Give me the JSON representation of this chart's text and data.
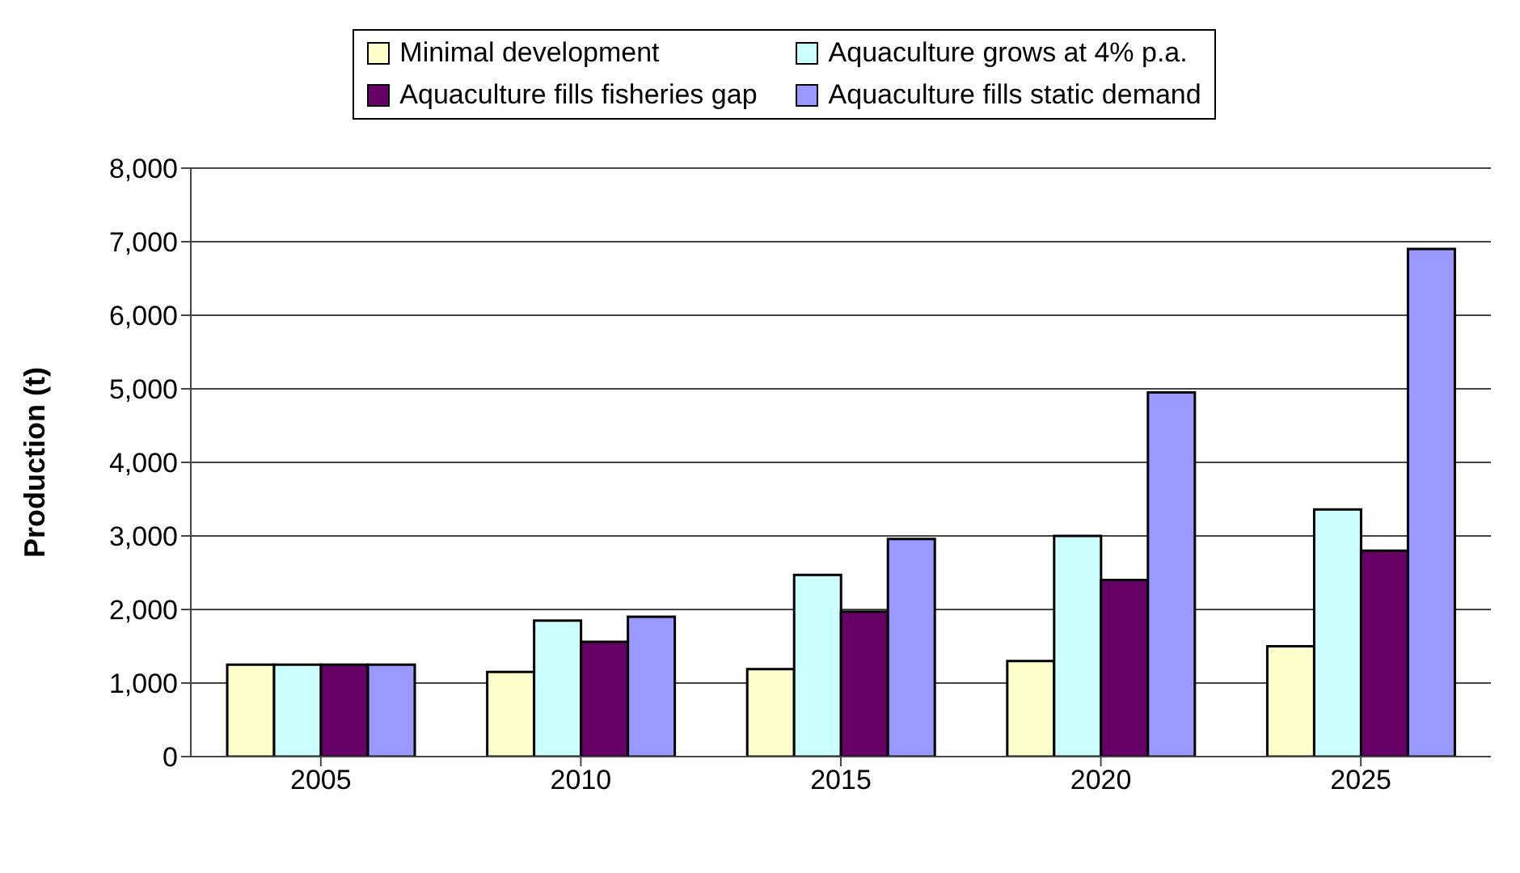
{
  "chart_data": {
    "type": "bar",
    "ylabel": "Production (t)",
    "categories": [
      "2005",
      "2010",
      "2015",
      "2020",
      "2025"
    ],
    "series": [
      {
        "name": "Minimal development",
        "color": "#ffffcc",
        "values": [
          1250,
          1150,
          1190,
          1300,
          1500
        ]
      },
      {
        "name": "Aquaculture grows at 4% p.a.",
        "color": "#ccffff",
        "values": [
          1250,
          1850,
          2470,
          3000,
          3360
        ]
      },
      {
        "name": "Aquaculture fills fisheries gap",
        "color": "#660066",
        "values": [
          1250,
          1560,
          1970,
          2400,
          2800
        ]
      },
      {
        "name": "Aquaculture fills static demand",
        "color": "#9999ff",
        "values": [
          1250,
          1900,
          2960,
          4950,
          6900
        ]
      }
    ],
    "ylim": [
      0,
      8000
    ],
    "yticks": [
      0,
      {
        "value": 1000,
        "label": "1,000"
      },
      {
        "value": 2000,
        "label": "2,000"
      },
      {
        "value": 3000,
        "label": "3,000"
      },
      {
        "value": 4000,
        "label": "4,000"
      },
      {
        "value": 5000,
        "label": "5,000"
      },
      {
        "value": 6000,
        "label": "6,000"
      },
      {
        "value": 7000,
        "label": "7,000"
      },
      {
        "value": 8000,
        "label": "8,000"
      }
    ],
    "grid": "y",
    "legend": "top"
  }
}
